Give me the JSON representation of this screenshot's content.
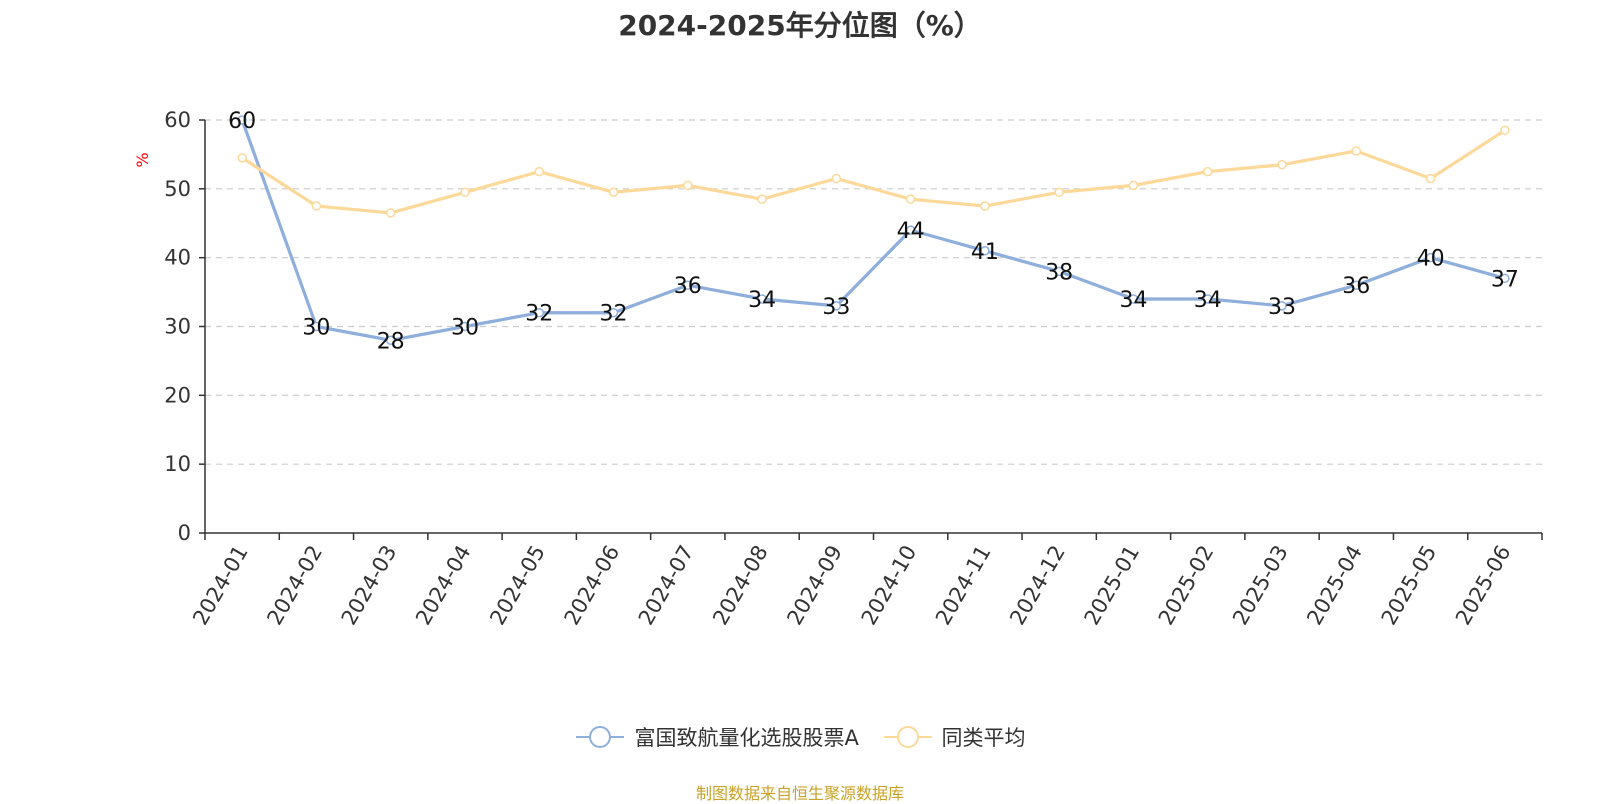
{
  "chart_data": {
    "type": "line",
    "title": "2024-2025年分位图（%）",
    "ylabel": "%",
    "ylim": [
      0,
      60
    ],
    "yticks": [
      0,
      10,
      20,
      30,
      40,
      50,
      60
    ],
    "grid": true,
    "legend_position": "bottom",
    "categories": [
      "2024-01",
      "2024-02",
      "2024-03",
      "2024-04",
      "2024-05",
      "2024-06",
      "2024-07",
      "2024-08",
      "2024-09",
      "2024-10",
      "2024-11",
      "2024-12",
      "2025-01",
      "2025-02",
      "2025-03",
      "2025-04",
      "2025-05",
      "2025-06"
    ],
    "series": [
      {
        "name": "富国致航量化选股股票A",
        "color": "#8eaedb",
        "show_labels": true,
        "values": [
          60,
          30,
          28,
          30,
          32,
          32,
          36,
          34,
          33,
          44,
          41,
          38,
          34,
          34,
          33,
          36,
          40,
          37
        ]
      },
      {
        "name": "同类平均",
        "color": "#fcd899",
        "show_labels": false,
        "values": [
          54.5,
          47.5,
          46.5,
          49.5,
          52.5,
          49.5,
          50.5,
          48.5,
          51.5,
          48.5,
          47.5,
          49.5,
          50.5,
          52.5,
          53.5,
          55.5,
          51.5,
          58.5
        ]
      }
    ]
  },
  "footer": {
    "source": "制图数据来自恒生聚源数据库"
  },
  "colors": {
    "ylabel": "#ff0000",
    "source": "#c9a227",
    "grid": "#cccccc",
    "axis": "#333333"
  }
}
